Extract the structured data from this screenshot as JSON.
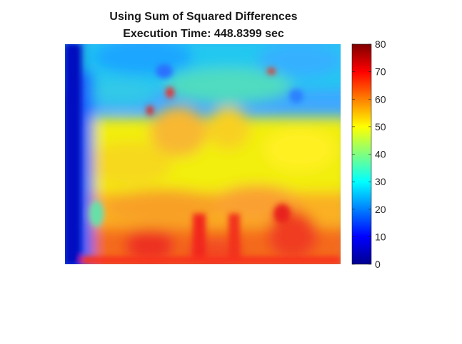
{
  "chart_data": {
    "type": "heatmap",
    "title": "Using Sum of Squared Differences",
    "subtitle": "Execution Time: 448.8399 sec",
    "colormap": "jet",
    "clim": [
      0,
      80
    ],
    "colorbar": {
      "location": "right",
      "ticks": [
        0,
        10,
        20,
        30,
        40,
        50,
        60,
        70,
        80
      ],
      "tick_labels": [
        "0",
        "10",
        "20",
        "30",
        "40",
        "50",
        "60",
        "70",
        "80"
      ]
    },
    "axes_visible": false
  },
  "colors": {
    "background": "#ffffff",
    "title_text": "#1a1a1a",
    "tick_text": "#262626"
  }
}
